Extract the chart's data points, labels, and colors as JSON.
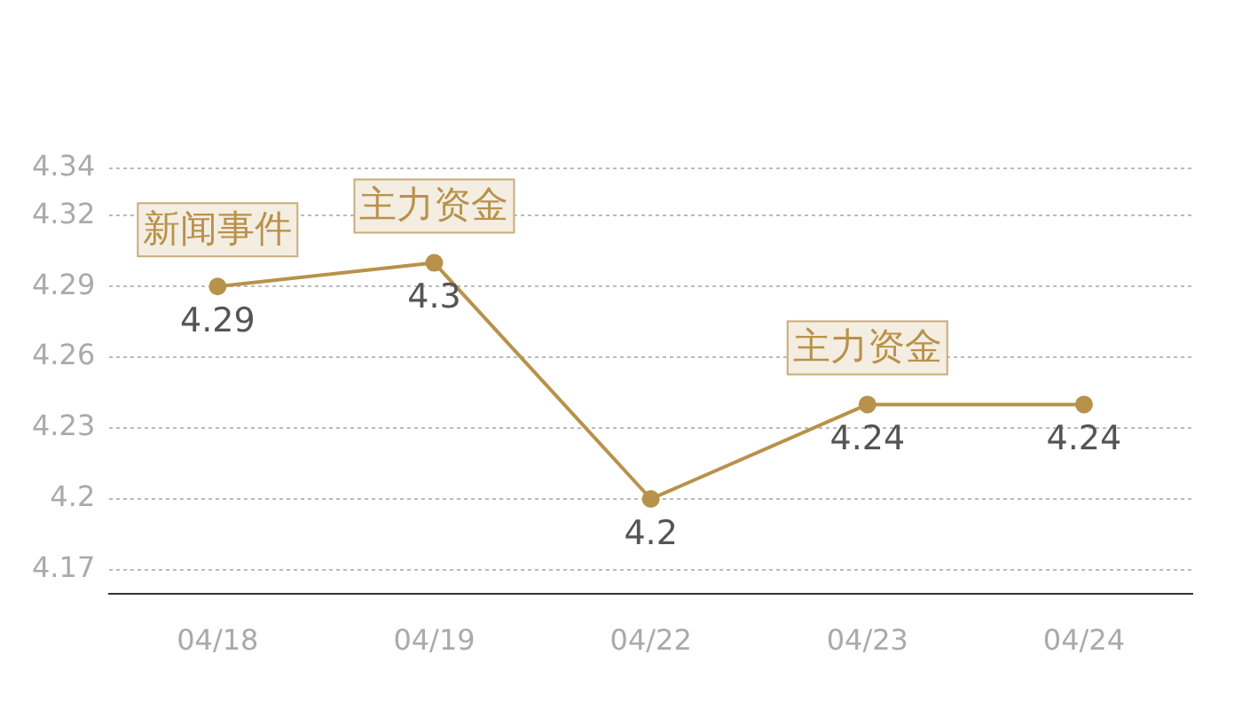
{
  "chart_data": {
    "type": "line",
    "categories": [
      "04/18",
      "04/19",
      "04/22",
      "04/23",
      "04/24"
    ],
    "series": [
      {
        "color": "#b8924a",
        "values": [
          4.29,
          4.3,
          4.2,
          4.24,
          4.24
        ]
      }
    ],
    "ylim": [
      4.16,
      4.34
    ],
    "yticks": [
      4.17,
      4.2,
      4.23,
      4.26,
      4.29,
      4.32,
      4.34
    ],
    "grid": "y",
    "marker": "circle",
    "line_style": "solid",
    "data_labels": true,
    "legend": false,
    "annotations": [
      {
        "text": "新闻事件",
        "x": "04/18",
        "y": 4.29
      },
      {
        "text": "主力资金",
        "x": "04/19",
        "y": 4.3
      },
      {
        "text": "主力资金",
        "x": "04/23",
        "y": 4.24
      }
    ]
  }
}
